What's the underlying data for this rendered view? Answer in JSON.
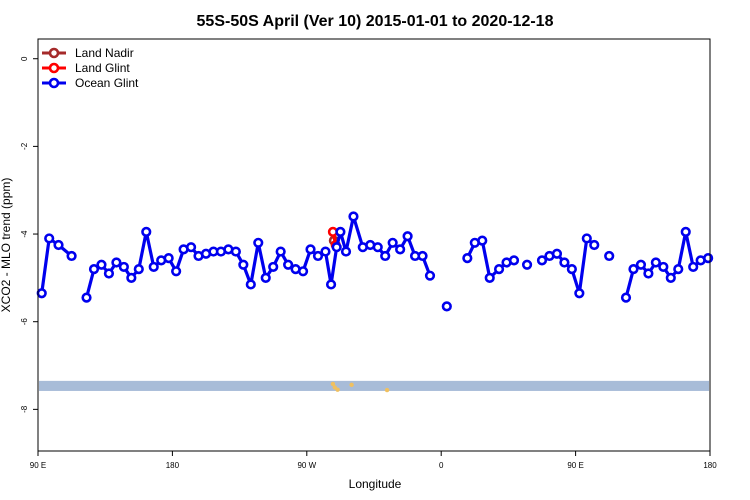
{
  "chart_data": {
    "type": "line",
    "title": "55S-50S April (Ver 10)   2015-01-01 to 2020-12-18",
    "xlabel": "Longitude",
    "ylabel": "XCO2 - MLO trend (ppm)",
    "xlim": [
      0,
      360
    ],
    "ylim": [
      0.45,
      -8.95
    ],
    "x_ticks": [
      {
        "v": 0,
        "label": "90 E"
      },
      {
        "v": 72,
        "label": "180"
      },
      {
        "v": 144,
        "label": "90 W"
      },
      {
        "v": 216,
        "label": "0"
      },
      {
        "v": 288,
        "label": "90 E"
      },
      {
        "v": 360,
        "label": "180"
      }
    ],
    "y_ticks": [
      {
        "v": 0,
        "label": "0"
      },
      {
        "v": -2,
        "label": "-2"
      },
      {
        "v": -4,
        "label": "-4"
      },
      {
        "v": -6,
        "label": "-6"
      },
      {
        "v": -8,
        "label": "-8"
      }
    ],
    "grid": false,
    "legend_position": "top-left",
    "land_band": {
      "y_top": -7.35,
      "y_bottom": -7.58,
      "color": "#a8bcd8"
    },
    "land_features": [
      {
        "x": 158,
        "y": -7.42,
        "color": "#f0c060"
      },
      {
        "x": 159,
        "y": -7.5,
        "color": "#f0c060"
      },
      {
        "x": 160.5,
        "y": -7.55,
        "color": "#f0c060"
      },
      {
        "x": 168,
        "y": -7.44,
        "color": "#f0c060"
      },
      {
        "x": 187,
        "y": -7.56,
        "color": "#f0c060"
      }
    ],
    "series": [
      {
        "name": "Land Nadir",
        "color": "#a52a2a",
        "points": [
          [
            158.5,
            -4.15
          ]
        ]
      },
      {
        "name": "Land Glint",
        "color": "#ff0000",
        "points": [
          [
            158,
            -3.95
          ],
          [
            159.5,
            -4.25
          ]
        ]
      },
      {
        "name": "Ocean Glint",
        "color": "#0000ee",
        "segments": [
          [
            [
              2,
              -5.35
            ],
            [
              6,
              -4.1
            ],
            [
              11,
              -4.25
            ],
            [
              18,
              -4.5
            ]
          ],
          [
            [
              26,
              -5.45
            ],
            [
              30,
              -4.8
            ],
            [
              34,
              -4.7
            ],
            [
              38,
              -4.9
            ],
            [
              42,
              -4.65
            ],
            [
              46,
              -4.75
            ],
            [
              50,
              -5.0
            ],
            [
              54,
              -4.8
            ],
            [
              58,
              -3.95
            ],
            [
              62,
              -4.75
            ],
            [
              66,
              -4.6
            ],
            [
              70,
              -4.55
            ],
            [
              74,
              -4.85
            ],
            [
              78,
              -4.35
            ],
            [
              82,
              -4.3
            ],
            [
              86,
              -4.5
            ],
            [
              90,
              -4.45
            ],
            [
              94,
              -4.4
            ],
            [
              98,
              -4.4
            ],
            [
              102,
              -4.35
            ],
            [
              106,
              -4.4
            ],
            [
              110,
              -4.7
            ],
            [
              114,
              -5.15
            ],
            [
              118,
              -4.2
            ],
            [
              122,
              -5.0
            ],
            [
              126,
              -4.75
            ],
            [
              130,
              -4.4
            ],
            [
              134,
              -4.7
            ],
            [
              138,
              -4.8
            ],
            [
              142,
              -4.85
            ],
            [
              146,
              -4.35
            ],
            [
              150,
              -4.5
            ],
            [
              154,
              -4.4
            ],
            [
              157,
              -5.15
            ],
            [
              160,
              -4.3
            ],
            [
              162,
              -3.95
            ],
            [
              165,
              -4.4
            ],
            [
              169,
              -3.6
            ],
            [
              174,
              -4.3
            ],
            [
              178,
              -4.25
            ],
            [
              182,
              -4.3
            ],
            [
              186,
              -4.5
            ],
            [
              190,
              -4.2
            ],
            [
              194,
              -4.35
            ],
            [
              198,
              -4.05
            ],
            [
              202,
              -4.5
            ],
            [
              206,
              -4.5
            ],
            [
              210,
              -4.95
            ]
          ],
          [
            [
              219,
              -5.65
            ]
          ],
          [
            [
              230,
              -4.55
            ],
            [
              234,
              -4.2
            ],
            [
              238,
              -4.15
            ],
            [
              242,
              -5.0
            ],
            [
              247,
              -4.8
            ],
            [
              251,
              -4.65
            ],
            [
              255,
              -4.6
            ]
          ],
          [
            [
              262,
              -4.7
            ]
          ],
          [
            [
              270,
              -4.6
            ],
            [
              274,
              -4.5
            ],
            [
              278,
              -4.45
            ],
            [
              282,
              -4.65
            ],
            [
              286,
              -4.8
            ],
            [
              290,
              -5.35
            ],
            [
              294,
              -4.1
            ],
            [
              298,
              -4.25
            ]
          ],
          [
            [
              306,
              -4.5
            ]
          ],
          [
            [
              315,
              -5.45
            ],
            [
              319,
              -4.8
            ],
            [
              323,
              -4.7
            ],
            [
              327,
              -4.9
            ],
            [
              331,
              -4.65
            ],
            [
              335,
              -4.75
            ],
            [
              339,
              -5.0
            ],
            [
              343,
              -4.8
            ],
            [
              347,
              -3.95
            ],
            [
              351,
              -4.75
            ],
            [
              355,
              -4.6
            ],
            [
              359,
              -4.55
            ]
          ]
        ]
      }
    ]
  }
}
